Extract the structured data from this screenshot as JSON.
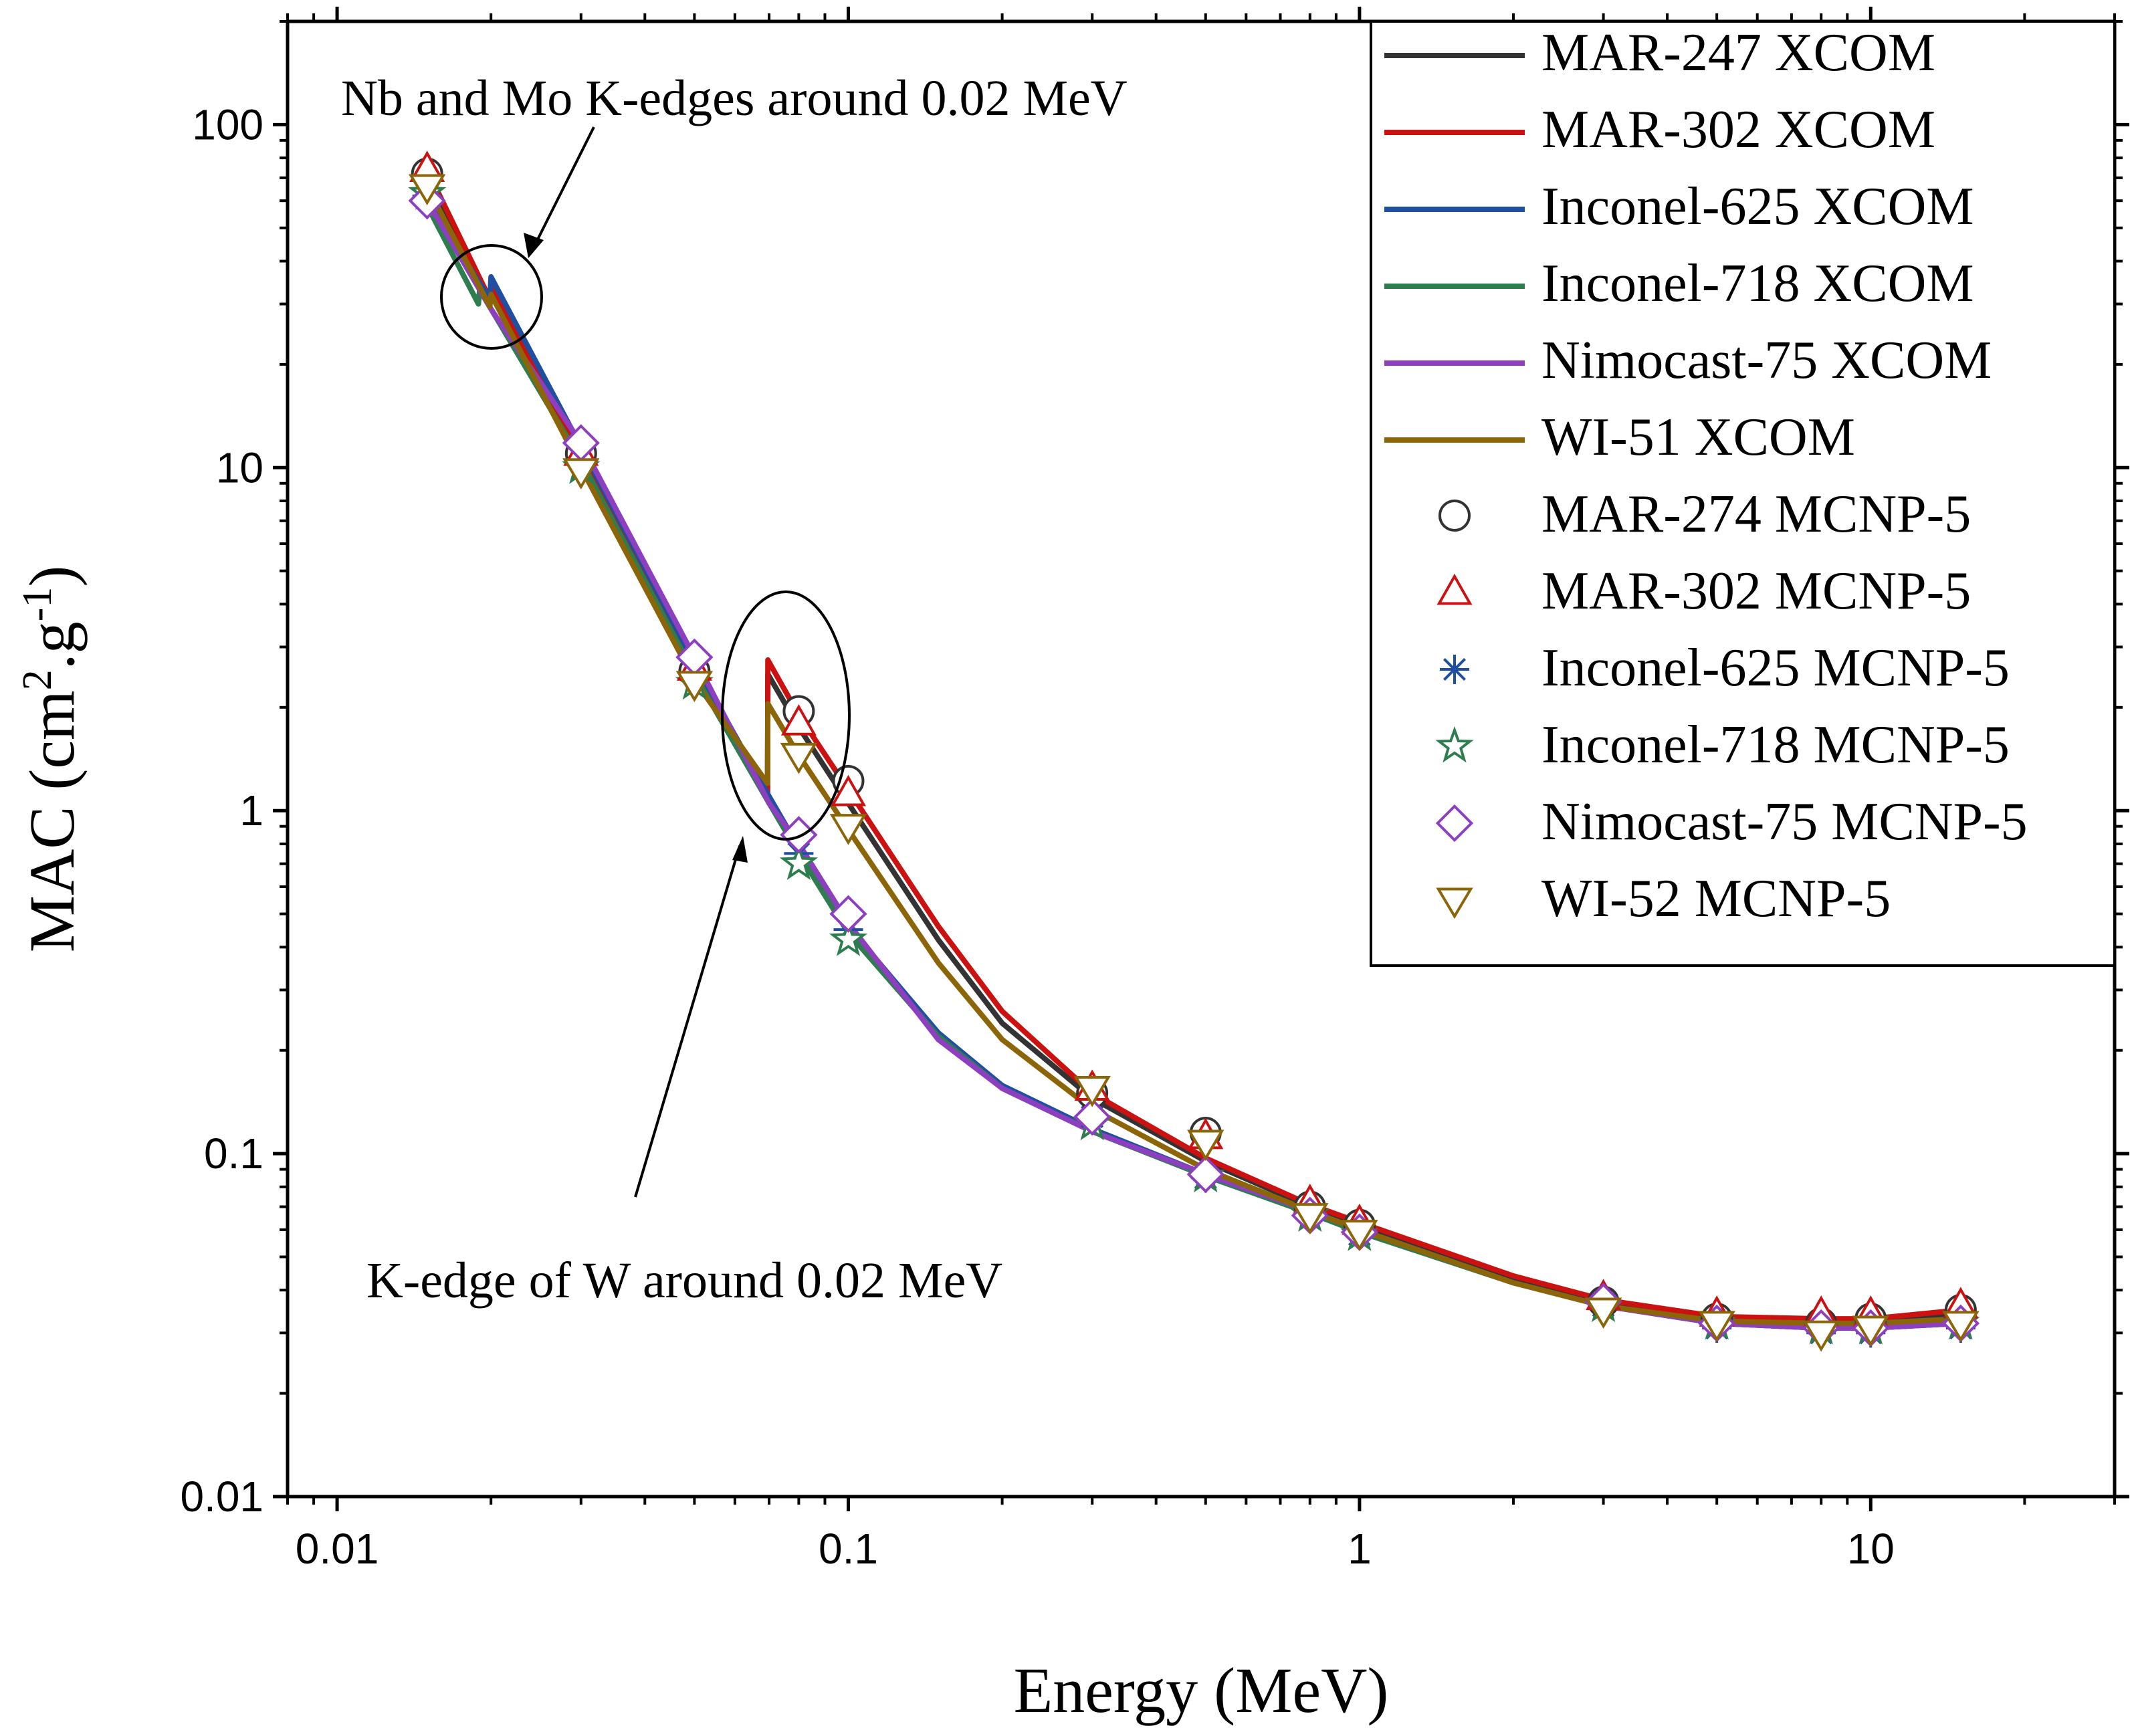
{
  "chart_data": {
    "type": "line",
    "title": "",
    "xlabel": "Energy (MeV)",
    "ylabel": {
      "main": "MAC (cm",
      "sup1": "2",
      "mid": ".g",
      "sup2": "-1",
      "end": ")"
    },
    "xscale": "log",
    "yscale": "log",
    "xlim": [
      0.008,
      30
    ],
    "ylim": [
      0.01,
      200
    ],
    "x_ticks": [
      {
        "value": 0.01,
        "label": "0.01"
      },
      {
        "value": 0.1,
        "label": "0.1"
      },
      {
        "value": 1,
        "label": "1"
      },
      {
        "value": 10,
        "label": "10"
      }
    ],
    "y_ticks": [
      {
        "value": 0.01,
        "label": "0.01"
      },
      {
        "value": 0.1,
        "label": "0.1"
      },
      {
        "value": 1,
        "label": "1"
      },
      {
        "value": 10,
        "label": "10"
      },
      {
        "value": 100,
        "label": "100"
      }
    ],
    "legend_position": "top-right",
    "series": [
      {
        "name": "MAR-247 XCOM",
        "kind": "line",
        "color": "#333333",
        "x": [
          0.015,
          0.0199,
          0.02,
          0.03,
          0.05,
          0.0695,
          0.0696,
          0.08,
          0.1,
          0.15,
          0.2,
          0.3,
          0.5,
          0.8,
          1,
          2,
          3,
          5,
          8,
          10,
          15
        ],
        "y": [
          70,
          30.5,
          33,
          10.8,
          2.6,
          1.08,
          2.5,
          1.75,
          1.05,
          0.42,
          0.24,
          0.145,
          0.095,
          0.07,
          0.062,
          0.043,
          0.037,
          0.033,
          0.0325,
          0.0325,
          0.034
        ]
      },
      {
        "name": "MAR-302 XCOM",
        "kind": "line",
        "color": "#cc1111",
        "x": [
          0.015,
          0.0199,
          0.02,
          0.03,
          0.05,
          0.0695,
          0.0696,
          0.08,
          0.1,
          0.15,
          0.2,
          0.3,
          0.5,
          0.8,
          1,
          2,
          3,
          5,
          8,
          10,
          15
        ],
        "y": [
          74,
          31,
          33.5,
          11,
          2.6,
          1.1,
          2.75,
          1.9,
          1.15,
          0.46,
          0.26,
          0.15,
          0.097,
          0.071,
          0.063,
          0.044,
          0.0375,
          0.0335,
          0.033,
          0.033,
          0.035
        ]
      },
      {
        "name": "Inconel-625 XCOM",
        "kind": "line",
        "color": "#1f4fa0",
        "x": [
          0.015,
          0.0199,
          0.02,
          0.03,
          0.05,
          0.07,
          0.08,
          0.1,
          0.15,
          0.2,
          0.3,
          0.5,
          0.8,
          1,
          2,
          3,
          5,
          8,
          10,
          15
        ],
        "y": [
          60,
          31,
          36,
          11.5,
          2.7,
          1.1,
          0.78,
          0.46,
          0.225,
          0.158,
          0.118,
          0.087,
          0.068,
          0.06,
          0.042,
          0.036,
          0.032,
          0.031,
          0.031,
          0.032
        ]
      },
      {
        "name": "Inconel-718 XCOM",
        "kind": "line",
        "color": "#2e7d4f",
        "x": [
          0.015,
          0.0189,
          0.019,
          0.03,
          0.05,
          0.07,
          0.08,
          0.1,
          0.15,
          0.2,
          0.3,
          0.5,
          0.8,
          1,
          2,
          3,
          5,
          8,
          10,
          15
        ],
        "y": [
          58,
          30,
          33,
          10.5,
          2.5,
          1.05,
          0.75,
          0.44,
          0.22,
          0.155,
          0.116,
          0.086,
          0.067,
          0.059,
          0.042,
          0.036,
          0.032,
          0.031,
          0.031,
          0.032
        ]
      },
      {
        "name": "Nimocast-75 XCOM",
        "kind": "line",
        "color": "#8e3fc0",
        "x": [
          0.015,
          0.02,
          0.03,
          0.05,
          0.07,
          0.08,
          0.1,
          0.15,
          0.2,
          0.3,
          0.5,
          0.8,
          1,
          2,
          3,
          5,
          8,
          10,
          15
        ],
        "y": [
          60,
          29,
          11.8,
          2.8,
          1.05,
          0.8,
          0.47,
          0.215,
          0.155,
          0.116,
          0.087,
          0.068,
          0.06,
          0.042,
          0.036,
          0.032,
          0.031,
          0.031,
          0.032
        ]
      },
      {
        "name": "WI-51 XCOM",
        "kind": "line",
        "color": "#8b6508",
        "x": [
          0.015,
          0.0199,
          0.02,
          0.03,
          0.05,
          0.0695,
          0.0696,
          0.08,
          0.1,
          0.15,
          0.2,
          0.3,
          0.5,
          0.8,
          1,
          2,
          3,
          5,
          8,
          10,
          15
        ],
        "y": [
          66,
          29.5,
          32,
          10,
          2.4,
          1.2,
          2.05,
          1.45,
          0.88,
          0.36,
          0.215,
          0.135,
          0.09,
          0.068,
          0.06,
          0.042,
          0.036,
          0.0325,
          0.032,
          0.032,
          0.033
        ]
      },
      {
        "name": "MAR-274 MCNP-5",
        "kind": "marker",
        "marker": "circle",
        "color": "#333333",
        "x": [
          0.015,
          0.03,
          0.05,
          0.08,
          0.1,
          0.3,
          0.5,
          0.8,
          1,
          3,
          5,
          8,
          10,
          15
        ],
        "y": [
          72,
          11,
          2.55,
          1.95,
          1.22,
          0.15,
          0.115,
          0.07,
          0.062,
          0.037,
          0.033,
          0.032,
          0.033,
          0.035
        ]
      },
      {
        "name": "MAR-302 MCNP-5",
        "kind": "marker",
        "marker": "triangle-up",
        "color": "#cc1111",
        "x": [
          0.015,
          0.03,
          0.05,
          0.08,
          0.1,
          0.3,
          0.5,
          0.8,
          1,
          3,
          5,
          8,
          10,
          15
        ],
        "y": [
          74,
          11,
          2.6,
          1.8,
          1.12,
          0.155,
          0.112,
          0.072,
          0.063,
          0.038,
          0.034,
          0.034,
          0.034,
          0.036
        ]
      },
      {
        "name": "Inconel-625 MCNP-5",
        "kind": "marker",
        "marker": "asterisk",
        "color": "#1f4fa0",
        "x": [
          0.015,
          0.03,
          0.05,
          0.08,
          0.1,
          0.3,
          0.5,
          0.8,
          1,
          3,
          5,
          8,
          10,
          15
        ],
        "y": [
          62,
          11,
          2.5,
          0.75,
          0.45,
          0.128,
          0.085,
          0.068,
          0.058,
          0.036,
          0.031,
          0.03,
          0.03,
          0.031
        ]
      },
      {
        "name": "Inconel-718 MCNP-5",
        "kind": "marker",
        "marker": "star",
        "color": "#2e7d4f",
        "x": [
          0.015,
          0.03,
          0.05,
          0.08,
          0.1,
          0.3,
          0.5,
          0.8,
          1,
          3,
          5,
          8,
          10,
          15
        ],
        "y": [
          63,
          10,
          2.35,
          0.7,
          0.42,
          0.122,
          0.086,
          0.066,
          0.058,
          0.036,
          0.032,
          0.031,
          0.031,
          0.032
        ]
      },
      {
        "name": "Nimocast-75 MCNP-5",
        "kind": "marker",
        "marker": "diamond",
        "color": "#8e3fc0",
        "x": [
          0.015,
          0.03,
          0.05,
          0.08,
          0.1,
          0.3,
          0.5,
          0.8,
          1,
          3,
          5,
          8,
          10,
          15
        ],
        "y": [
          60,
          11.8,
          2.8,
          0.85,
          0.5,
          0.128,
          0.087,
          0.066,
          0.059,
          0.037,
          0.032,
          0.031,
          0.031,
          0.032
        ]
      },
      {
        "name": "WI-52 MCNP-5",
        "kind": "marker",
        "marker": "triangle-down",
        "color": "#8b6508",
        "x": [
          0.015,
          0.03,
          0.05,
          0.08,
          0.1,
          0.3,
          0.5,
          0.8,
          1,
          3,
          5,
          8,
          10,
          15
        ],
        "y": [
          66,
          9.8,
          2.35,
          1.45,
          0.9,
          0.155,
          0.108,
          0.066,
          0.059,
          0.035,
          0.032,
          0.03,
          0.031,
          0.032
        ]
      }
    ],
    "annotations": [
      {
        "text": "Nb and Mo K-edges around 0.02 MeV",
        "target_x": 0.02,
        "target_y": 33
      },
      {
        "text": "K-edge of W around 0.02 MeV",
        "target_x": 0.07,
        "target_y": 1.8
      }
    ]
  }
}
